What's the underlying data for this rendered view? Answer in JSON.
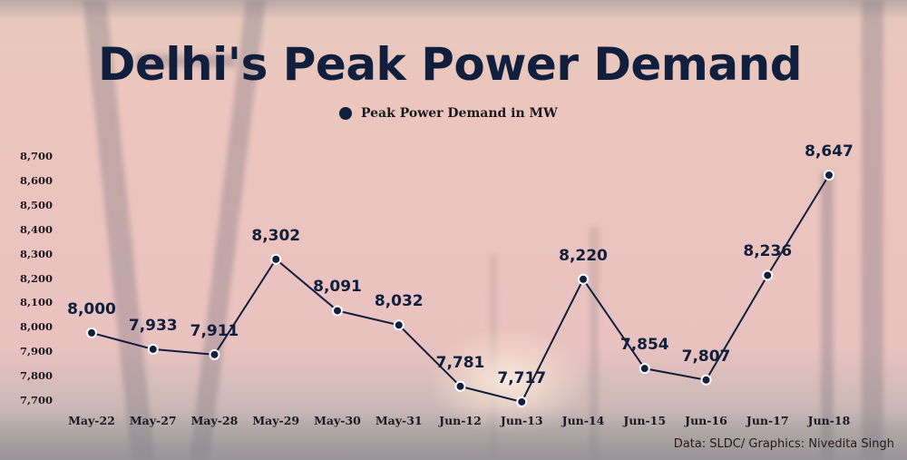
{
  "title": "Delhi's Peak Power Demand",
  "legend": {
    "label": "Peak Power Demand in MW",
    "color": "#0f1f3d"
  },
  "credit": "Data: SLDC/ Graphics: Nivedita Singh",
  "y_ticks": [
    "8,700",
    "8,600",
    "8,500",
    "8,400",
    "8,300",
    "8,200",
    "8,100",
    "8,000",
    "7,900",
    "7,800",
    "7,700"
  ],
  "x_ticks": [
    "May-22",
    "May-27",
    "May-28",
    "May-29",
    "May-30",
    "May-31",
    "Jun-12",
    "Jun-13",
    "Jun-14",
    "Jun-15",
    "Jun-16",
    "Jun-17",
    "Jun-18"
  ],
  "data_labels": [
    "8,000",
    "7,933",
    "7,911",
    "8,302",
    "8,091",
    "8,032",
    "7,781",
    "7,717",
    "8,220",
    "7,854",
    "7,807",
    "8,236",
    "8,647"
  ],
  "colors": {
    "line": "#0f1f3d",
    "marker_fill": "#0f1f3d",
    "marker_stroke": "#ffffff",
    "title": "#0f1f3d"
  },
  "chart_data": {
    "type": "line",
    "title": "Delhi's Peak Power Demand",
    "subtitle": "",
    "xlabel": "",
    "ylabel": "",
    "categories": [
      "May-22",
      "May-27",
      "May-28",
      "May-29",
      "May-30",
      "May-31",
      "Jun-12",
      "Jun-13",
      "Jun-14",
      "Jun-15",
      "Jun-16",
      "Jun-17",
      "Jun-18"
    ],
    "series": [
      {
        "name": "Peak Power Demand in MW",
        "values": [
          8000,
          7933,
          7911,
          8302,
          8091,
          8032,
          7781,
          7717,
          8220,
          7854,
          7807,
          8236,
          8647
        ]
      }
    ],
    "ylim": [
      7700,
      8700
    ],
    "y_ticks": [
      7700,
      7800,
      7900,
      8000,
      8100,
      8200,
      8300,
      8400,
      8500,
      8600,
      8700
    ],
    "grid": false,
    "legend_position": "top-center",
    "data_labels": true,
    "annotations": [
      "Data: SLDC/ Graphics: Nivedita Singh"
    ]
  }
}
